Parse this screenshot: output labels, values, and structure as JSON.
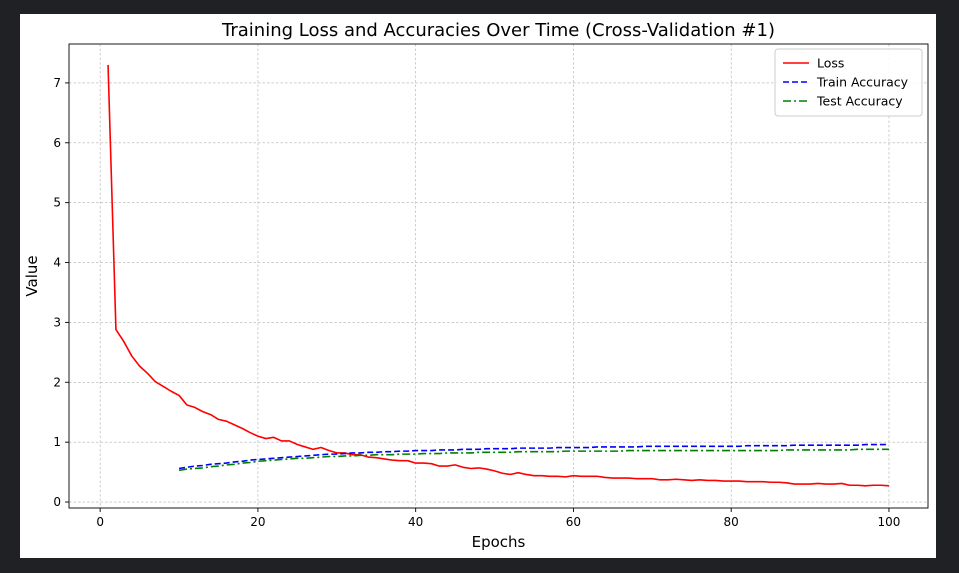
{
  "chart_data": {
    "type": "line",
    "title": "Training Loss and Accuracies Over Time (Cross-Validation #1)",
    "xlabel": "Epochs",
    "ylabel": "Value",
    "xlim": [
      -3.95,
      104.95
    ],
    "ylim": [
      -0.1,
      7.65
    ],
    "xticks": [
      0,
      20,
      40,
      60,
      80,
      100
    ],
    "yticks": [
      0,
      1,
      2,
      3,
      4,
      5,
      6,
      7
    ],
    "grid": true,
    "legend_position": "top-right",
    "series": [
      {
        "name": "Loss",
        "color": "#ff0000",
        "style": "solid",
        "x": [
          1,
          2,
          3,
          4,
          5,
          6,
          7,
          8,
          9,
          10,
          11,
          12,
          13,
          14,
          15,
          16,
          17,
          18,
          19,
          20,
          21,
          22,
          23,
          24,
          25,
          26,
          27,
          28,
          29,
          30,
          31,
          32,
          33,
          34,
          35,
          36,
          37,
          38,
          39,
          40,
          41,
          42,
          43,
          44,
          45,
          46,
          47,
          48,
          49,
          50,
          51,
          52,
          53,
          54,
          55,
          56,
          57,
          58,
          59,
          60,
          61,
          62,
          63,
          64,
          65,
          66,
          67,
          68,
          69,
          70,
          71,
          72,
          73,
          74,
          75,
          76,
          77,
          78,
          79,
          80,
          81,
          82,
          83,
          84,
          85,
          86,
          87,
          88,
          89,
          90,
          91,
          92,
          93,
          94,
          95,
          96,
          97,
          98,
          99,
          100
        ],
        "values": [
          7.3,
          2.88,
          2.68,
          2.44,
          2.27,
          2.15,
          2.01,
          1.93,
          1.85,
          1.78,
          1.62,
          1.58,
          1.51,
          1.46,
          1.38,
          1.35,
          1.29,
          1.23,
          1.16,
          1.1,
          1.06,
          1.08,
          1.02,
          1.02,
          0.96,
          0.92,
          0.88,
          0.91,
          0.86,
          0.82,
          0.82,
          0.79,
          0.79,
          0.75,
          0.74,
          0.72,
          0.7,
          0.69,
          0.69,
          0.65,
          0.65,
          0.64,
          0.6,
          0.6,
          0.62,
          0.58,
          0.56,
          0.57,
          0.55,
          0.52,
          0.48,
          0.46,
          0.49,
          0.46,
          0.44,
          0.44,
          0.43,
          0.43,
          0.42,
          0.44,
          0.43,
          0.43,
          0.43,
          0.41,
          0.4,
          0.4,
          0.4,
          0.39,
          0.39,
          0.39,
          0.37,
          0.37,
          0.38,
          0.37,
          0.36,
          0.37,
          0.36,
          0.36,
          0.35,
          0.35,
          0.35,
          0.34,
          0.34,
          0.34,
          0.33,
          0.33,
          0.32,
          0.3,
          0.3,
          0.3,
          0.31,
          0.3,
          0.3,
          0.31,
          0.28,
          0.28,
          0.27,
          0.28,
          0.28,
          0.27
        ]
      },
      {
        "name": "Train Accuracy",
        "color": "#0000ff",
        "style": "dashed",
        "x": [
          10,
          11,
          12,
          13,
          14,
          15,
          16,
          17,
          18,
          19,
          20,
          21,
          22,
          23,
          24,
          25,
          26,
          27,
          28,
          29,
          30,
          31,
          32,
          33,
          34,
          35,
          36,
          37,
          38,
          39,
          40,
          41,
          42,
          43,
          44,
          45,
          46,
          47,
          48,
          49,
          50,
          51,
          52,
          53,
          54,
          55,
          56,
          57,
          58,
          59,
          60,
          61,
          62,
          63,
          64,
          65,
          66,
          67,
          68,
          69,
          70,
          71,
          72,
          73,
          74,
          75,
          76,
          77,
          78,
          79,
          80,
          81,
          82,
          83,
          84,
          85,
          86,
          87,
          88,
          89,
          90,
          91,
          92,
          93,
          94,
          95,
          96,
          97,
          98,
          99,
          100
        ],
        "values": [
          0.56,
          0.58,
          0.6,
          0.61,
          0.63,
          0.64,
          0.65,
          0.67,
          0.68,
          0.7,
          0.71,
          0.72,
          0.73,
          0.74,
          0.75,
          0.76,
          0.77,
          0.78,
          0.79,
          0.8,
          0.8,
          0.81,
          0.82,
          0.82,
          0.83,
          0.83,
          0.84,
          0.84,
          0.85,
          0.85,
          0.86,
          0.86,
          0.86,
          0.87,
          0.87,
          0.87,
          0.88,
          0.88,
          0.88,
          0.89,
          0.89,
          0.89,
          0.89,
          0.9,
          0.9,
          0.9,
          0.9,
          0.9,
          0.91,
          0.91,
          0.91,
          0.91,
          0.91,
          0.92,
          0.92,
          0.92,
          0.92,
          0.92,
          0.92,
          0.93,
          0.93,
          0.93,
          0.93,
          0.93,
          0.93,
          0.93,
          0.93,
          0.93,
          0.93,
          0.93,
          0.93,
          0.93,
          0.94,
          0.94,
          0.94,
          0.94,
          0.94,
          0.94,
          0.95,
          0.95,
          0.95,
          0.95,
          0.95,
          0.95,
          0.95,
          0.95,
          0.95,
          0.96,
          0.96,
          0.96,
          0.96
        ]
      },
      {
        "name": "Test Accuracy",
        "color": "#008000",
        "style": "dashdot",
        "x": [
          10,
          11,
          12,
          13,
          14,
          15,
          16,
          17,
          18,
          19,
          20,
          21,
          22,
          23,
          24,
          25,
          26,
          27,
          28,
          29,
          30,
          31,
          32,
          33,
          34,
          35,
          36,
          37,
          38,
          39,
          40,
          41,
          42,
          43,
          44,
          45,
          46,
          47,
          48,
          49,
          50,
          51,
          52,
          53,
          54,
          55,
          56,
          57,
          58,
          59,
          60,
          61,
          62,
          63,
          64,
          65,
          66,
          67,
          68,
          69,
          70,
          71,
          72,
          73,
          74,
          75,
          76,
          77,
          78,
          79,
          80,
          81,
          82,
          83,
          84,
          85,
          86,
          87,
          88,
          89,
          90,
          91,
          92,
          93,
          94,
          95,
          96,
          97,
          98,
          99,
          100
        ],
        "values": [
          0.53,
          0.55,
          0.56,
          0.57,
          0.59,
          0.6,
          0.62,
          0.63,
          0.65,
          0.66,
          0.68,
          0.69,
          0.7,
          0.71,
          0.72,
          0.73,
          0.73,
          0.74,
          0.75,
          0.76,
          0.76,
          0.77,
          0.77,
          0.78,
          0.78,
          0.79,
          0.79,
          0.79,
          0.8,
          0.8,
          0.8,
          0.81,
          0.81,
          0.81,
          0.82,
          0.82,
          0.82,
          0.82,
          0.83,
          0.83,
          0.83,
          0.83,
          0.83,
          0.84,
          0.84,
          0.84,
          0.84,
          0.84,
          0.84,
          0.85,
          0.85,
          0.85,
          0.85,
          0.85,
          0.85,
          0.85,
          0.85,
          0.86,
          0.86,
          0.86,
          0.86,
          0.86,
          0.86,
          0.86,
          0.86,
          0.86,
          0.86,
          0.86,
          0.86,
          0.86,
          0.86,
          0.86,
          0.86,
          0.86,
          0.86,
          0.86,
          0.86,
          0.87,
          0.87,
          0.87,
          0.87,
          0.87,
          0.87,
          0.87,
          0.87,
          0.87,
          0.88,
          0.88,
          0.88,
          0.88,
          0.88
        ]
      }
    ]
  }
}
